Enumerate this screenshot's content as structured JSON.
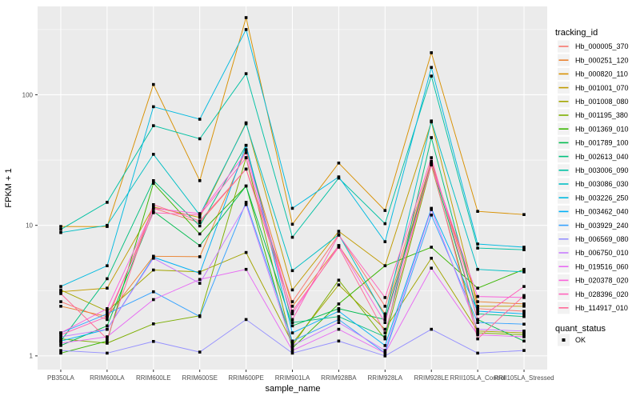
{
  "chart_data": {
    "type": "line",
    "title": "",
    "xlabel": "sample_name",
    "ylabel": "FPKM + 1",
    "y_scale": "log10",
    "y_ticks": [
      1,
      10,
      100
    ],
    "y_tick_labels": [
      "1",
      "10",
      "100"
    ],
    "y_minor_ticks": [
      3.162,
      31.62,
      316.2
    ],
    "y_range_log10": [
      -0.105,
      2.677
    ],
    "grid": "major-and-minor-white-on-grey",
    "legend_position": "right",
    "categories": [
      "PB350LA",
      "RRIM600LA",
      "RRIM600LE",
      "RRIM600SE",
      "RRIM600PE",
      "RRIM901LA",
      "RRIM928BA",
      "RRIM928LA",
      "RRIM928LE",
      "RRII105LA_Control",
      "RRII105LA_Stressed"
    ],
    "series": [
      {
        "name": "Hb_000005_370",
        "color": "#F8766D",
        "values": [
          2.6,
          1.9,
          13.5,
          10.5,
          27,
          2.6,
          8.5,
          2.4,
          31,
          2.3,
          2.2
        ]
      },
      {
        "name": "Hb_000251_120",
        "color": "#EA8331",
        "values": [
          2.4,
          2.0,
          5.8,
          5.75,
          38,
          2.4,
          7.0,
          2.1,
          30,
          2.6,
          2.5
        ]
      },
      {
        "name": "Hb_000820_110",
        "color": "#D89000",
        "values": [
          9.8,
          9.8,
          120,
          22,
          390,
          10.2,
          30,
          13,
          210,
          12.8,
          12.1
        ]
      },
      {
        "name": "Hb_001001_070",
        "color": "#C09B00",
        "values": [
          3.1,
          3.3,
          13.8,
          11.5,
          61,
          3.2,
          9.0,
          4.9,
          62,
          2.4,
          2.4
        ]
      },
      {
        "name": "Hb_001008_080",
        "color": "#A3A500",
        "values": [
          3.2,
          2.2,
          4.55,
          4.4,
          6.2,
          1.25,
          3.5,
          1.6,
          5.6,
          1.55,
          1.5
        ]
      },
      {
        "name": "Hb_001195_380",
        "color": "#7CAE00",
        "values": [
          1.35,
          1.25,
          1.76,
          2.03,
          33,
          1.2,
          3.8,
          1.35,
          29,
          1.5,
          1.45
        ]
      },
      {
        "name": "Hb_001369_010",
        "color": "#39B600",
        "values": [
          1.05,
          1.3,
          21,
          8.6,
          20,
          1.15,
          2.5,
          4.9,
          6.8,
          3.3,
          4.6
        ]
      },
      {
        "name": "Hb_001789_100",
        "color": "#00BB4E",
        "values": [
          1.2,
          1.7,
          12.8,
          7.0,
          20,
          1.7,
          2.3,
          1.9,
          30,
          1.9,
          1.3
        ]
      },
      {
        "name": "Hb_002613_040",
        "color": "#00BF7D",
        "values": [
          1.3,
          3.9,
          22,
          9.9,
          41,
          1.8,
          2.0,
          1.4,
          47,
          2.1,
          2.0
        ]
      },
      {
        "name": "Hb_003006_090",
        "color": "#00C1A3",
        "values": [
          9.3,
          15,
          58,
          46,
          145,
          8.1,
          23,
          10.3,
          139,
          6.7,
          6.5
        ]
      },
      {
        "name": "Hb_003086_030",
        "color": "#00BFC4",
        "values": [
          8.8,
          10,
          35,
          12,
          60,
          4.5,
          8.5,
          2.0,
          63,
          4.6,
          4.4
        ]
      },
      {
        "name": "Hb_003226_250",
        "color": "#00BAE0",
        "values": [
          3.4,
          4.9,
          81,
          65,
          316,
          13.5,
          23.5,
          7.5,
          162,
          7.2,
          6.8
        ]
      },
      {
        "name": "Hb_003462_040",
        "color": "#00B0F6",
        "values": [
          1.3,
          1.6,
          5.7,
          4.3,
          41,
          1.5,
          2.2,
          1.2,
          13.5,
          2.2,
          2.1
        ]
      },
      {
        "name": "Hb_003929_240",
        "color": "#35A2FF",
        "values": [
          1.5,
          2.1,
          3.1,
          2.0,
          15,
          1.3,
          1.9,
          1.05,
          12,
          1.8,
          1.75
        ]
      },
      {
        "name": "Hb_006569_080",
        "color": "#9590FF",
        "values": [
          1.1,
          1.05,
          1.29,
          1.07,
          1.9,
          1.05,
          1.3,
          1.0,
          1.6,
          1.05,
          1.1
        ]
      },
      {
        "name": "Hb_006750_010",
        "color": "#C77CFF",
        "values": [
          1.4,
          1.6,
          5.6,
          3.6,
          14.4,
          1.2,
          1.8,
          1.1,
          13.2,
          1.6,
          1.55
        ]
      },
      {
        "name": "Hb_019516_060",
        "color": "#E76BF3",
        "values": [
          1.25,
          1.4,
          2.7,
          3.85,
          4.6,
          1.1,
          1.6,
          1.05,
          4.7,
          1.45,
          1.4
        ]
      },
      {
        "name": "Hb_020378_020",
        "color": "#FA62DB",
        "values": [
          1.5,
          2.3,
          13.5,
          12.3,
          36,
          2.1,
          7.0,
          1.8,
          29,
          2.85,
          2.8
        ]
      },
      {
        "name": "Hb_028396_020",
        "color": "#FF62BC",
        "values": [
          1.45,
          2.0,
          12.5,
          12.0,
          33,
          1.9,
          8.4,
          2.8,
          33,
          1.9,
          3.4
        ]
      },
      {
        "name": "Hb_114917_010",
        "color": "#FF6A98",
        "values": [
          3.0,
          1.35,
          14.4,
          10.8,
          27,
          2.2,
          6.8,
          1.5,
          30,
          1.35,
          2.9
        ]
      }
    ],
    "point_marker": {
      "shape": "square",
      "color": "#000000"
    }
  },
  "legend": {
    "tracking_title": "tracking_id",
    "quant_title": "quant_status",
    "quant_items": [
      {
        "label": "OK",
        "marker": "black-square"
      }
    ]
  },
  "colors": {
    "panel_bg": "#EBEBEB",
    "grid": "#FFFFFF",
    "tick_label": "#4d4d4d",
    "tick_mark": "#333333",
    "legend_key_bg": "#F2F2F2",
    "point": "#000000"
  }
}
